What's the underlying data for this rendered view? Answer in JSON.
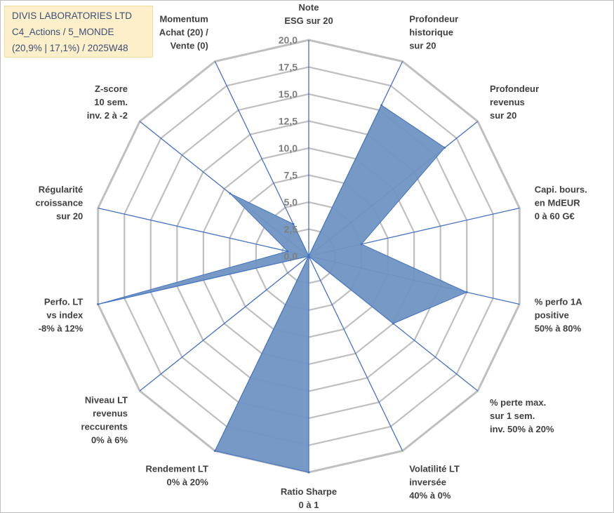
{
  "header": {
    "line1": "DIVIS LABORATORIES LTD",
    "line2": "C4_Actions / 5_MONDE",
    "line3": "(20,9% | 17,1%) / 2025W48"
  },
  "chart_data": {
    "type": "radar",
    "title": "DIVIS LABORATORIES LTD",
    "rmin": 0,
    "rmax": 20,
    "tick_step": 2.5,
    "tick_labels": [
      "0,0",
      "2,5",
      "5,0",
      "7,5",
      "10,0",
      "12,5",
      "15,0",
      "17,5",
      "20,0"
    ],
    "fill_color": "#6f95c2",
    "line_color": "#4472c4",
    "grid_color": "#bfbfbf",
    "axes": [
      {
        "lines": [
          "Note",
          "ESG sur 20"
        ],
        "value": 0
      },
      {
        "lines": [
          "Profondeur",
          "historique",
          "sur 20"
        ],
        "value": 15.5
      },
      {
        "lines": [
          "Profondeur",
          "revenus",
          "sur 20"
        ],
        "value": 16.1
      },
      {
        "lines": [
          "Capi. bours.",
          "en MdEUR",
          "0 à 60 G€"
        ],
        "value": 5.0
      },
      {
        "lines": [
          "% perfo 1A",
          "positive",
          "50% à 80%"
        ],
        "value": 15.0
      },
      {
        "lines": [
          "% perte max.",
          "sur 1 sem.",
          "inv. 50% à 20%"
        ],
        "value": 10.0
      },
      {
        "lines": [
          "Volatilité LT",
          "inversée",
          "40% à 0%"
        ],
        "value": 0
      },
      {
        "lines": [
          "Ratio Sharpe",
          "0 à 1"
        ],
        "value": 20.0
      },
      {
        "lines": [
          "Rendement LT",
          "0% à 20%"
        ],
        "value": 20.0
      },
      {
        "lines": [
          "Niveau LT",
          "revenus",
          "reccurents",
          "0% à 6%"
        ],
        "value": 0
      },
      {
        "lines": [
          "Perfo. LT",
          "vs index",
          "-8% à 12%"
        ],
        "value": 20.0
      },
      {
        "lines": [
          "Régularité",
          "croissance",
          "sur 20"
        ],
        "value": 2.0
      },
      {
        "lines": [
          "Z-score",
          "10 sem.",
          "inv. 2 à -2"
        ],
        "value": 9.3
      },
      {
        "lines": [
          "Momentum",
          "Achat (20) /",
          "Vente (0)"
        ],
        "value": 3.3
      }
    ]
  }
}
